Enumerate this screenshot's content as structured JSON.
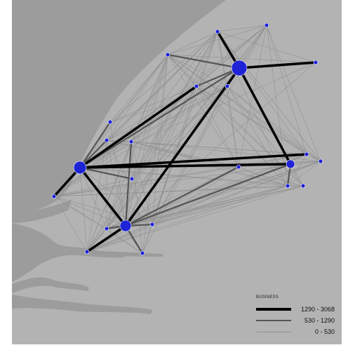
{
  "map": {
    "colors": {
      "land": "#b3b3b3",
      "water": "#9c9c9c",
      "node": "#1f23d6",
      "edge_major": "#000000",
      "edge_medium": "#555555",
      "edge_minor": "#909090"
    }
  },
  "legend": {
    "title": "BUSINESS",
    "items": [
      {
        "label": "1290 - 3068",
        "class": "major"
      },
      {
        "label": "530 - 1290",
        "class": "medium"
      },
      {
        "label": "0 - 530",
        "class": "minor"
      }
    ]
  }
}
